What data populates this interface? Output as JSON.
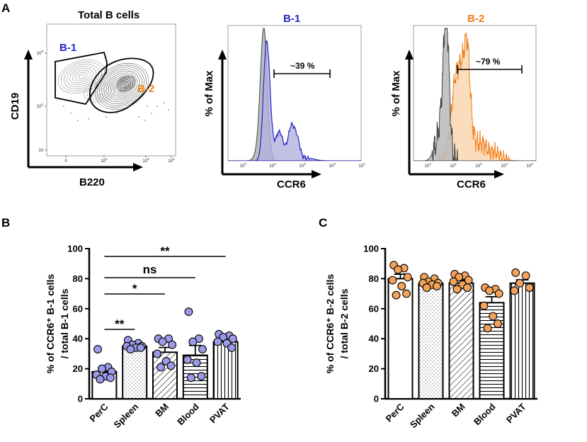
{
  "colors": {
    "b1": "#2424c8",
    "b2": "#f07d18",
    "b1_dot": "#9a9ae6",
    "b2_dot": "#f2a25a",
    "b1_fill": "#b3b0de",
    "b2_fill": "#fad7b2",
    "grey_fill": "#bdbdbd"
  },
  "panel_a": {
    "letter": "A",
    "contour": {
      "title": "Total B cells",
      "xlabel": "B220",
      "ylabel": "CD19",
      "gate_b1": "B-1",
      "gate_b2": "B-2",
      "x_ticks": [
        "0",
        "10",
        "10",
        "10"
      ],
      "x_exps": [
        "",
        "2",
        "3",
        "4"
      ],
      "y_ticks": [
        "10",
        "10",
        "10"
      ],
      "y_exps": [
        "3",
        "2",
        ""
      ]
    },
    "hist_b1": {
      "title": "B-1",
      "xlabel": "CCR6",
      "ylabel": "% of Max",
      "gate_pct": "~39 %",
      "x_ticks": [
        "10",
        "10",
        "10",
        "10",
        "10",
        "10"
      ],
      "x_exps": [
        "0",
        "1",
        "2",
        "3",
        "4",
        "5"
      ]
    },
    "hist_b2": {
      "title": "B-2",
      "xlabel": "CCR6",
      "ylabel": "% of Max",
      "gate_pct": "~79 %",
      "x_ticks": [
        "10",
        "10",
        "10",
        "10",
        "10",
        "10"
      ],
      "x_exps": [
        "0",
        "1",
        "2",
        "3",
        "4",
        "5"
      ]
    }
  },
  "chart_data": [
    {
      "type": "bar",
      "panel": "B",
      "categories": [
        "PerC",
        "Spleen",
        "BM",
        "Blood",
        "PVAT"
      ],
      "means": [
        18,
        35,
        31,
        29,
        38
      ],
      "sem": [
        2.5,
        1.0,
        3.2,
        6.5,
        2.2
      ],
      "points": [
        [
          33,
          21,
          20,
          18,
          16,
          15,
          14,
          13
        ],
        [
          39,
          37,
          36,
          35,
          35,
          34,
          34,
          33
        ],
        [
          40,
          40,
          38,
          36,
          30,
          25,
          22,
          21
        ],
        [
          58,
          40,
          38,
          33,
          26,
          24,
          15,
          14
        ],
        [
          43,
          42,
          41,
          40,
          38,
          37,
          34
        ]
      ],
      "ylabel_line1": "% of CCR6⁺ B-1 cells",
      "ylabel_line2": "/ total B-1 cells",
      "ylim": [
        0,
        100
      ],
      "y_ticks": [
        "0",
        "20",
        "40",
        "60",
        "80",
        "100"
      ],
      "significance": [
        {
          "from": "PerC",
          "to": "Spleen",
          "label": "**"
        },
        {
          "from": "PerC",
          "to": "BM",
          "label": "*"
        },
        {
          "from": "PerC",
          "to": "Blood",
          "label": "ns"
        },
        {
          "from": "PerC",
          "to": "PVAT",
          "label": "**"
        }
      ]
    },
    {
      "type": "bar",
      "panel": "C",
      "categories": [
        "PerC",
        "Spleen",
        "BM",
        "Blood",
        "PVAT"
      ],
      "means": [
        80,
        77,
        77,
        64,
        77
      ],
      "sem": [
        3.0,
        1.3,
        2.0,
        4.0,
        2.2
      ],
      "points": [
        [
          89,
          87,
          86,
          81,
          79,
          75,
          70,
          69
        ],
        [
          81,
          80,
          78,
          77,
          77,
          76,
          75,
          74
        ],
        [
          83,
          82,
          81,
          79,
          78,
          76,
          74,
          73
        ],
        [
          74,
          73,
          72,
          70,
          62,
          55,
          50,
          47
        ],
        [
          84,
          82,
          77,
          74,
          72
        ]
      ],
      "ylabel_line1": "% of CCR6⁺ B-2 cells",
      "ylabel_line2": "/ total B-2 cells",
      "ylim": [
        0,
        100
      ],
      "y_ticks": [
        "0",
        "20",
        "40",
        "60",
        "80",
        "100"
      ],
      "significance": []
    }
  ]
}
